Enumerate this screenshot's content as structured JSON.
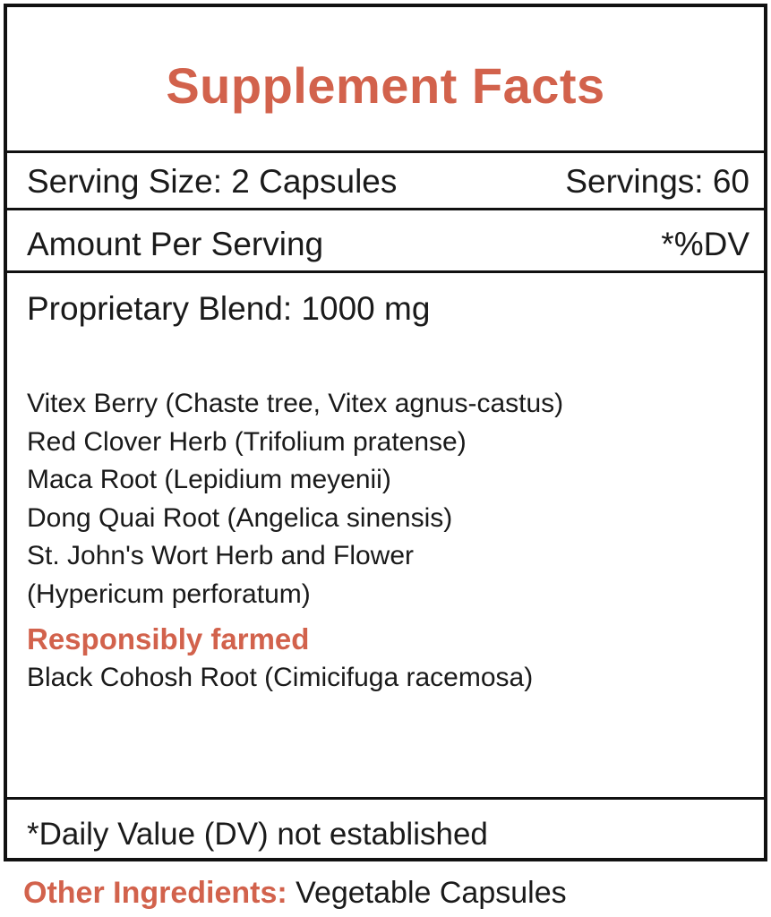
{
  "header": {
    "title": "Supplement Facts"
  },
  "serving": {
    "size": "Serving Size: 2 Capsules",
    "servings": "Servings: 60"
  },
  "amount": {
    "label": "Amount Per Serving",
    "dv": "*%DV"
  },
  "blend": "Proprietary Blend: 1000 mg",
  "ingredients": [
    "Vitex Berry (Chaste tree, Vitex agnus-castus)",
    "Red Clover Herb (Trifolium pratense)",
    "Maca Root (Lepidium meyenii)",
    "Dong Quai Root (Angelica sinensis)",
    "St. John's Wort Herb and Flower",
    "(Hypericum perforatum)"
  ],
  "subheading": "Responsibly farmed",
  "farmed_ingredients": [
    "Black Cohosh Root (Cimicifuga racemosa)"
  ],
  "footnote": "*Daily Value (DV) not established",
  "other_ingredients": {
    "label": "Other Ingredients:",
    "value": "Vegetable Capsules"
  }
}
